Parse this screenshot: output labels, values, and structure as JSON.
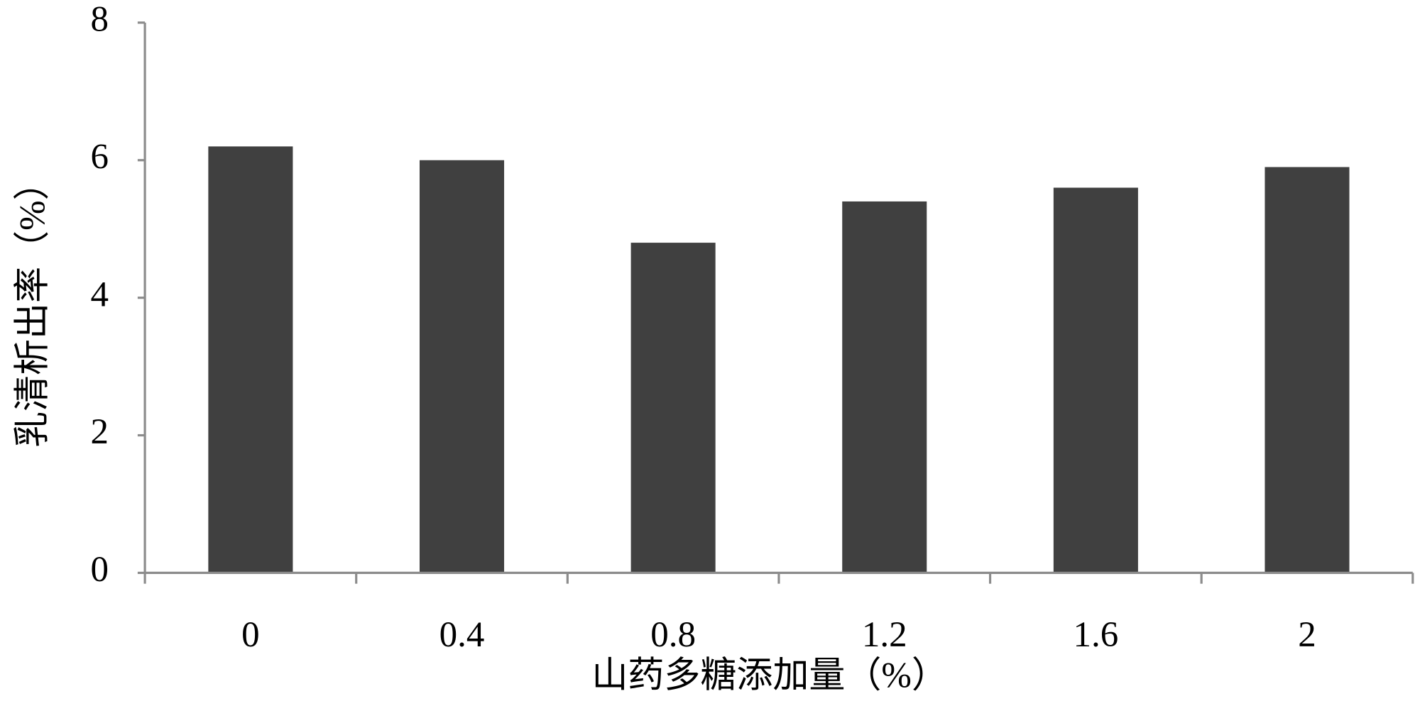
{
  "chart_data": {
    "type": "bar",
    "x_label": "山药多糖添加量（%）",
    "y_label": "乳清析出率（%）",
    "categories": [
      "0",
      "0.4",
      "0.8",
      "1.2",
      "1.6",
      "2"
    ],
    "values": [
      6.2,
      6.0,
      4.8,
      5.4,
      5.6,
      5.9
    ],
    "color": "#404040",
    "ylim": [
      0,
      8
    ],
    "yticks": [
      0,
      2,
      4,
      6,
      8
    ],
    "grid": false
  }
}
